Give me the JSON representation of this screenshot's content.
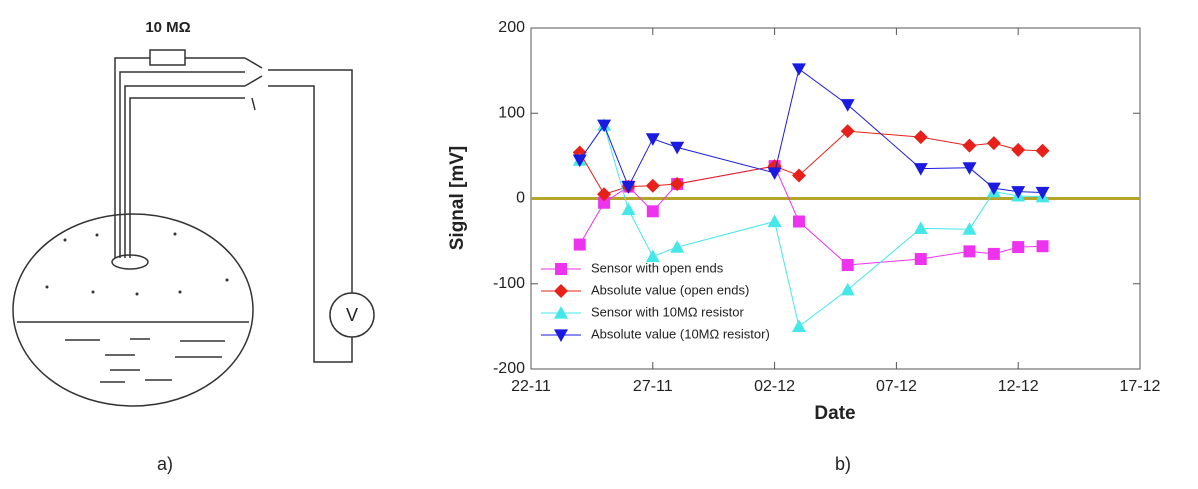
{
  "diagram": {
    "resistor_label": "10 MΩ",
    "meter_label": "V",
    "panel_label": "a)"
  },
  "chart_data": {
    "type": "line",
    "panel_label": "b)",
    "x_label": "Date",
    "y_label": "Signal [mV]",
    "x": [
      "24-11",
      "25-11",
      "26-11",
      "27-11",
      "28-11",
      "02-12",
      "03-12",
      "05-12",
      "08-12",
      "10-12",
      "11-12",
      "12-12",
      "13-12"
    ],
    "xlim": [
      "22-11",
      "17-12"
    ],
    "xticks": [
      "22-11",
      "27-11",
      "02-12",
      "07-12",
      "12-12",
      "17-12"
    ],
    "ylim": [
      -200,
      200
    ],
    "yticks": [
      -200,
      -100,
      0,
      100,
      200
    ],
    "zero_line_color": "#b5a52a",
    "legend": "lower left",
    "series": [
      {
        "name": "Sensor with open ends",
        "color": "#ee33ee",
        "marker": "square",
        "values": [
          -54,
          -5,
          14,
          -15,
          17,
          38,
          -27,
          -78,
          -71,
          -62,
          -65,
          -57,
          -56
        ]
      },
      {
        "name": "Absolute value (open ends)",
        "color": "#e8201a",
        "marker": "diamond",
        "values": [
          54,
          5,
          14,
          15,
          17,
          38,
          27,
          79,
          72,
          62,
          65,
          57,
          56
        ]
      },
      {
        "name": "Sensor with 10MΩ resistor",
        "color": "#44e8e8",
        "marker": "triangle-up",
        "values": [
          45,
          86,
          -13,
          -68,
          -57,
          -27,
          -150,
          -107,
          -35,
          -36,
          8,
          3,
          2
        ]
      },
      {
        "name": "Absolute value (10MΩ resistor)",
        "color": "#1a1ae0",
        "marker": "triangle-down",
        "values": [
          45,
          86,
          14,
          70,
          60,
          30,
          152,
          110,
          35,
          36,
          12,
          8,
          7
        ]
      }
    ]
  }
}
